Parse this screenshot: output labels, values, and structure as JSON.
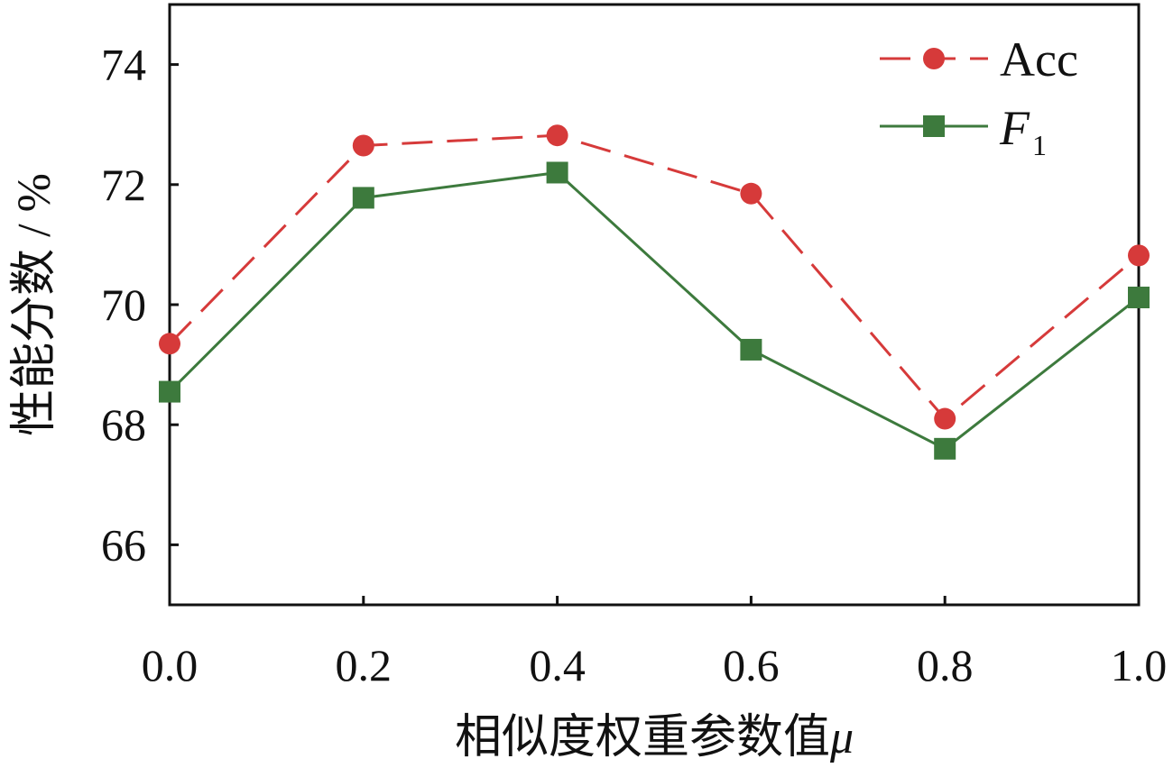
{
  "chart_data": {
    "type": "line",
    "title": "",
    "xlabel": "相似度权重参数值",
    "xlabel_symbol": "μ",
    "ylabel": "性能分数 / %",
    "x": [
      0.0,
      0.2,
      0.4,
      0.6,
      0.8,
      1.0
    ],
    "x_tick_labels": [
      "0.0",
      "0.2",
      "0.4",
      "0.6",
      "0.8",
      "1.0"
    ],
    "xlim": [
      0.0,
      1.0
    ],
    "y_ticks": [
      66,
      68,
      70,
      72,
      74
    ],
    "y_tick_labels": [
      "66",
      "68",
      "70",
      "72",
      "74"
    ],
    "ylim": [
      65.0,
      75.0
    ],
    "grid": false,
    "legend_position": "top-right",
    "series": [
      {
        "name": "Acc",
        "values": [
          69.35,
          72.65,
          72.82,
          71.85,
          68.1,
          70.82
        ],
        "color": "#d63a3a",
        "line_style": "dashed",
        "marker": "circle"
      },
      {
        "name": "F",
        "name_subscript": "1",
        "values": [
          68.55,
          71.78,
          72.2,
          69.25,
          67.6,
          70.12
        ],
        "color": "#3d7a3d",
        "line_style": "solid",
        "marker": "square"
      }
    ]
  }
}
